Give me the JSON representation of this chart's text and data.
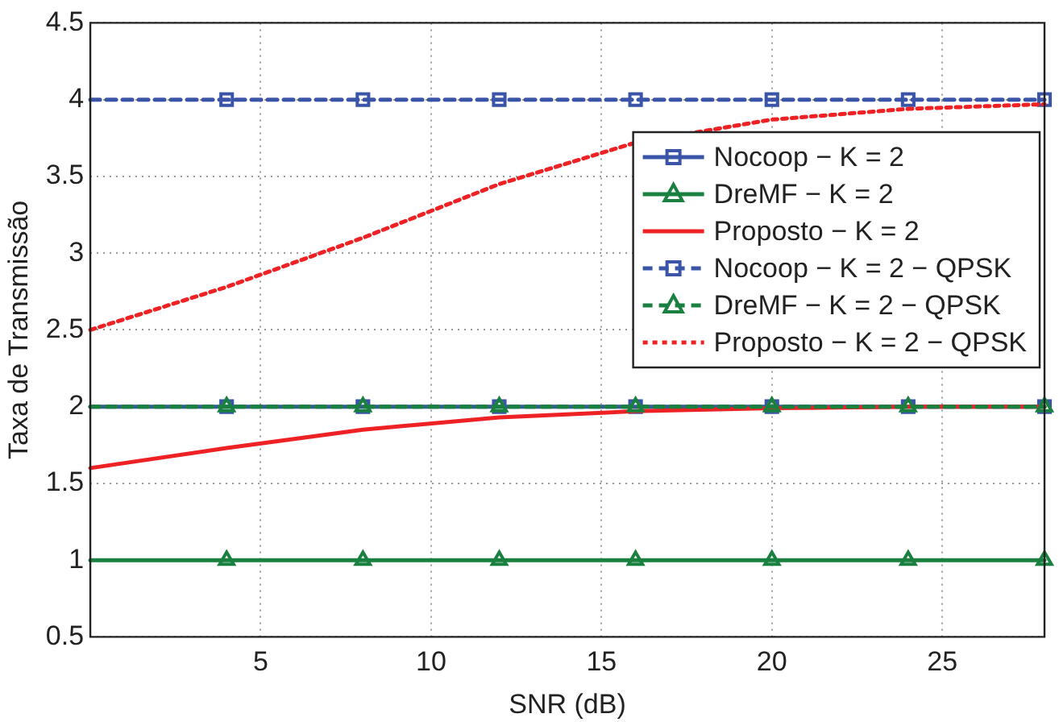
{
  "chart_data": {
    "type": "line",
    "xlabel": "SNR (dB)",
    "ylabel": "Taxa de Transmissão",
    "x": [
      0,
      4,
      8,
      12,
      16,
      20,
      24,
      28
    ],
    "xlim": [
      0,
      28
    ],
    "xticks": [
      5,
      10,
      15,
      20,
      25
    ],
    "ylim": [
      0.5,
      4.5
    ],
    "yticks": [
      0.5,
      1,
      1.5,
      2,
      2.5,
      3,
      3.5,
      4,
      4.5
    ],
    "grid": true,
    "legend": "right",
    "series": [
      {
        "name": "Nocoop − K = 2",
        "color": "#3a55a8",
        "values": [
          2,
          2,
          2,
          2,
          2,
          2,
          2,
          2
        ],
        "marker": "square",
        "line_style": "solid"
      },
      {
        "name": "DreMF − K = 2",
        "color": "#1a8040",
        "values": [
          1,
          1,
          1,
          1,
          1,
          1,
          1,
          1
        ],
        "marker": "triangle",
        "line_style": "solid"
      },
      {
        "name": "Proposto − K = 2",
        "color": "#ee2224",
        "values": [
          1.6,
          1.73,
          1.85,
          1.93,
          1.97,
          1.99,
          2,
          2
        ],
        "marker": "none",
        "line_style": "solid"
      },
      {
        "name": "Nocoop − K = 2 − QPSK",
        "color": "#3a55a8",
        "values": [
          4,
          4,
          4,
          4,
          4,
          4,
          4,
          4
        ],
        "marker": "square",
        "line_style": "dashed"
      },
      {
        "name": "DreMF − K = 2 − QPSK",
        "color": "#1a8040",
        "values": [
          2,
          2,
          2,
          2,
          2,
          2,
          2,
          2
        ],
        "marker": "triangle",
        "line_style": "dashed"
      },
      {
        "name": "Proposto − K = 2 − QPSK",
        "color": "#ee2224",
        "values": [
          2.5,
          2.78,
          3.1,
          3.45,
          3.72,
          3.87,
          3.94,
          3.97
        ],
        "marker": "none",
        "line_style": "dotted"
      }
    ]
  }
}
